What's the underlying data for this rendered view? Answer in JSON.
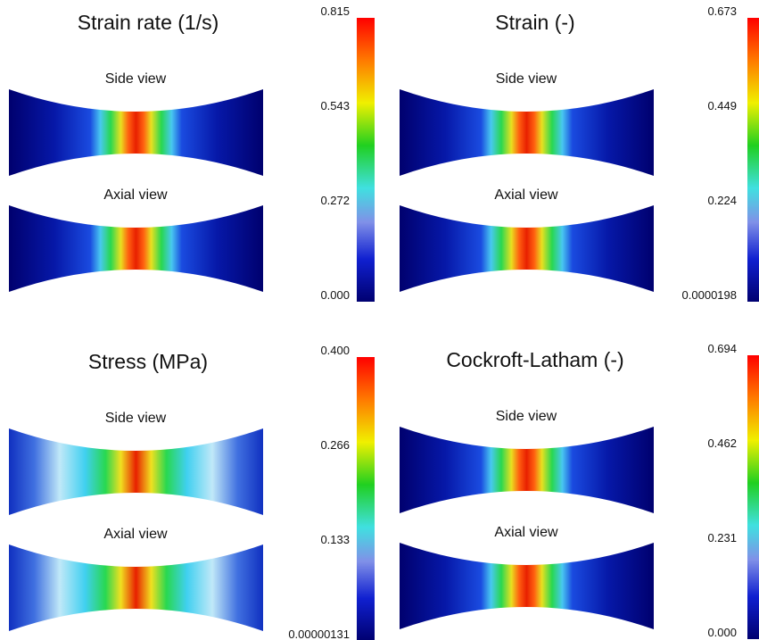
{
  "panels": [
    {
      "title": "Strain rate (1/s)",
      "views": [
        "Side view",
        "Axial view"
      ],
      "colorbar_ticks": [
        "0.815",
        "0.543",
        "0.272",
        "0.000"
      ]
    },
    {
      "title": "Strain (-)",
      "views": [
        "Side view",
        "Axial view"
      ],
      "colorbar_ticks": [
        "0.673",
        "0.449",
        "0.224",
        "0.0000198"
      ]
    },
    {
      "title": "Stress (MPa)",
      "views": [
        "Side view",
        "Axial view"
      ],
      "colorbar_ticks": [
        "0.400",
        "0.266",
        "0.133",
        "0.00000131"
      ]
    },
    {
      "title": "Cockroft-Latham (-)",
      "views": [
        "Side view",
        "Axial view"
      ],
      "colorbar_ticks": [
        "0.694",
        "0.462",
        "0.231",
        "0.000"
      ]
    }
  ]
}
